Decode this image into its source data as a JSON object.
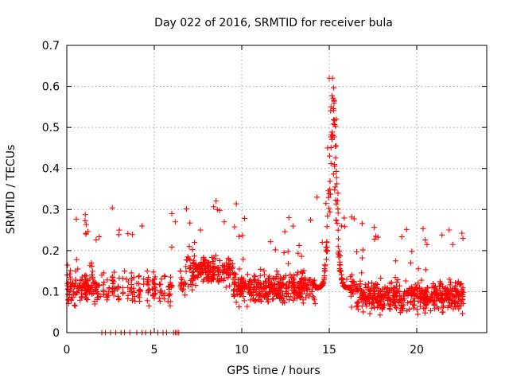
{
  "chart_data": {
    "type": "scatter",
    "title": "Day 022 of 2016, SRMTID for receiver bula",
    "xlabel": "GPS time / hours",
    "ylabel": "SRMTID / TECUs",
    "xlim": [
      0,
      24
    ],
    "ylim": [
      0,
      0.7
    ],
    "xticks": [
      0,
      5,
      10,
      15,
      20
    ],
    "xtick_labels": [
      "0",
      "5",
      "10",
      "15",
      "20"
    ],
    "yticks": [
      0,
      0.1,
      0.2,
      0.3,
      0.4,
      0.5,
      0.6,
      0.7
    ],
    "ytick_labels": [
      "0",
      "0.1",
      "0.2",
      "0.3",
      "0.4",
      "0.5",
      "0.6",
      "0.7"
    ],
    "grid": true,
    "marker": "+",
    "color": "#ff0000",
    "x_range_hours": [
      0,
      22.7
    ],
    "baseline_mean": 0.11,
    "spike": {
      "center_hours": 15.2,
      "max_value": 0.62
    },
    "zero_values_hours": [
      2.0,
      2.2,
      2.5,
      2.8,
      3.1,
      3.3,
      3.6,
      4.0,
      4.3,
      4.5,
      4.8,
      5.2,
      5.5,
      5.7,
      6.1,
      6.2,
      6.3,
      6.4
    ],
    "series": [
      {
        "name": "SRMTID",
        "points": [
          [
            0.2,
            0.13
          ],
          [
            0.5,
            0.15
          ],
          [
            0.8,
            0.11
          ],
          [
            1.1,
            0.24
          ],
          [
            1.4,
            0.17
          ],
          [
            1.7,
            0.1
          ],
          [
            2.0,
            0.14
          ],
          [
            2.3,
            0.08
          ],
          [
            2.6,
            0.1
          ],
          [
            3.0,
            0.25
          ],
          [
            3.3,
            0.15
          ],
          [
            3.6,
            0.1
          ],
          [
            4.0,
            0.12
          ],
          [
            4.3,
            0.26
          ],
          [
            4.6,
            0.15
          ],
          [
            5.0,
            0.13
          ],
          [
            5.5,
            0.09
          ],
          [
            6.0,
            0.29
          ],
          [
            6.2,
            0.27
          ],
          [
            6.5,
            0.15
          ],
          [
            7.0,
            0.21
          ],
          [
            7.3,
            0.22
          ],
          [
            7.8,
            0.18
          ],
          [
            8.2,
            0.15
          ],
          [
            8.6,
            0.3
          ],
          [
            9.0,
            0.27
          ],
          [
            9.5,
            0.13
          ],
          [
            10.0,
            0.12
          ],
          [
            10.5,
            0.1
          ],
          [
            11.0,
            0.09
          ],
          [
            11.5,
            0.08
          ],
          [
            12.0,
            0.15
          ],
          [
            12.5,
            0.1
          ],
          [
            13.0,
            0.11
          ],
          [
            13.5,
            0.08
          ],
          [
            14.0,
            0.1
          ],
          [
            14.3,
            0.33
          ],
          [
            14.6,
            0.22
          ],
          [
            14.9,
            0.45
          ],
          [
            15.0,
            0.62
          ],
          [
            15.1,
            0.55
          ],
          [
            15.2,
            0.48
          ],
          [
            15.3,
            0.41
          ],
          [
            15.4,
            0.52
          ],
          [
            15.5,
            0.34
          ],
          [
            15.7,
            0.26
          ],
          [
            16.0,
            0.13
          ],
          [
            16.5,
            0.1
          ],
          [
            17.0,
            0.08
          ],
          [
            17.5,
            0.09
          ],
          [
            18.0,
            0.07
          ],
          [
            18.5,
            0.08
          ],
          [
            19.0,
            0.1
          ],
          [
            19.5,
            0.09
          ],
          [
            20.0,
            0.11
          ],
          [
            20.5,
            0.06
          ],
          [
            21.0,
            0.07
          ],
          [
            21.5,
            0.05
          ],
          [
            22.0,
            0.1
          ],
          [
            22.5,
            0.08
          ]
        ]
      }
    ]
  }
}
